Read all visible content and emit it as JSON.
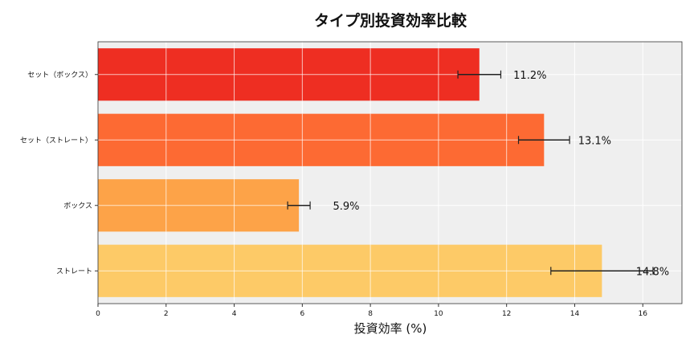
{
  "chart_data": {
    "type": "bar",
    "orientation": "horizontal",
    "title": "タイプ別投資効率比較",
    "xlabel": "投資効率 (%)",
    "ylabel": "",
    "xlim": [
      0,
      17.15
    ],
    "xticks": [
      0,
      2,
      4,
      6,
      8,
      10,
      12,
      14,
      16
    ],
    "grid": true,
    "categories": [
      "セット（ボックス）",
      "セット（ストレート）",
      "ボックス",
      "ストレート"
    ],
    "values": [
      11.2,
      13.1,
      5.9,
      14.8
    ],
    "errors": [
      0.63,
      0.75,
      0.33,
      1.5
    ],
    "data_labels": [
      "11.2%",
      "13.1%",
      "5.9%",
      "14.8%"
    ],
    "colors": [
      "#EE2E22",
      "#FD6A33",
      "#FDA348",
      "#FDCA67"
    ],
    "background": "#EFEFEF"
  }
}
